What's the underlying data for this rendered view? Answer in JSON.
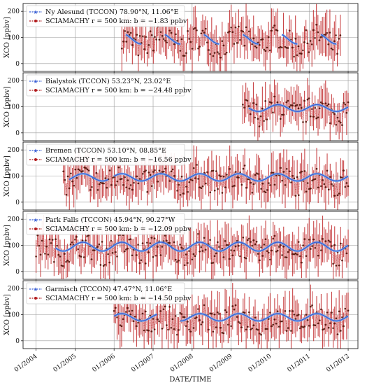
{
  "chart_data": {
    "type": "line",
    "xlabel": "DATE/TIME",
    "x_ticks": [
      "01/2004",
      "01/2005",
      "01/2006",
      "01/2007",
      "01/2008",
      "01/2009",
      "01/2010",
      "01/2011",
      "01/2012"
    ],
    "xlim": [
      "2003-09",
      "2012-04"
    ],
    "grid": true,
    "legend_position": "top-left",
    "colors": {
      "tccon": "#3a5fd6",
      "sciamachy": "#b0191b",
      "error_bar": "#c0282a",
      "grid": "#9a9a9a"
    },
    "panels": [
      {
        "ylabel": "XCO [ppbv]",
        "ylim": [
          -30,
          230
        ],
        "yticks": [
          0,
          100,
          200
        ],
        "legend": [
          "Ny Alesund (TCCON) 78.90°N, 11.06°E",
          "SCIAMACHY r = 500 km: b = −1.83 ppbv"
        ],
        "tccon_seasons": [
          [
            2006.3,
            2006.7
          ],
          [
            2007.3,
            2007.7
          ],
          [
            2008.3,
            2008.7
          ],
          [
            2009.3,
            2009.7
          ],
          [
            2010.3,
            2010.7
          ],
          [
            2011.3,
            2011.7
          ]
        ],
        "sciamachy_span": [
          2006.2,
          2011.8
        ],
        "mean": 95,
        "amplitude": 20
      },
      {
        "ylabel": "XCO [ppbv]",
        "ylim": [
          -30,
          230
        ],
        "yticks": [
          0,
          100,
          200
        ],
        "legend": [
          "Bialystok (TCCON) 53.23°N, 23.02°E",
          "SCIAMACHY r = 500 km: b = −24.48 ppbv"
        ],
        "tccon_seasons": [
          [
            2009.45,
            2012.0
          ]
        ],
        "sciamachy_span": [
          2009.3,
          2012.0
        ],
        "mean": 95,
        "amplitude": 13
      },
      {
        "ylabel": "XCO [ppbv]",
        "ylim": [
          -30,
          230
        ],
        "yticks": [
          0,
          100,
          200
        ],
        "legend": [
          "Bremen (TCCON) 53.10°N, 08.85°E",
          "SCIAMACHY r = 500 km: b = −16.56 ppbv"
        ],
        "tccon_seasons": [
          [
            2004.85,
            2005.85
          ],
          [
            2006.0,
            2012.0
          ]
        ],
        "sciamachy_span": [
          2004.7,
          2012.0
        ],
        "mean": 95,
        "amplitude": 14
      },
      {
        "ylabel": "XCO [ppbv]",
        "ylim": [
          -30,
          230
        ],
        "yticks": [
          0,
          100,
          200
        ],
        "legend": [
          "Park Falls (TCCON) 45.94°N, 90.27°W",
          "SCIAMACHY r = 500 km: b = −12.09 ppbv"
        ],
        "tccon_seasons": [
          [
            2004.5,
            2012.0
          ]
        ],
        "sciamachy_span": [
          2004.0,
          2012.0
        ],
        "mean": 95,
        "amplitude": 17
      },
      {
        "ylabel": "XCO [ppbv]",
        "ylim": [
          -30,
          230
        ],
        "yticks": [
          0,
          100,
          200
        ],
        "legend": [
          "Garmisch (TCCON) 47.47°N, 11.06°E",
          "SCIAMACHY r = 500 km: b = −14.50 ppbv"
        ],
        "tccon_seasons": [
          [
            2006.0,
            2007.1
          ],
          [
            2007.7,
            2012.0
          ]
        ],
        "sciamachy_span": [
          2006.0,
          2012.0
        ],
        "mean": 90,
        "amplitude": 14
      }
    ]
  }
}
